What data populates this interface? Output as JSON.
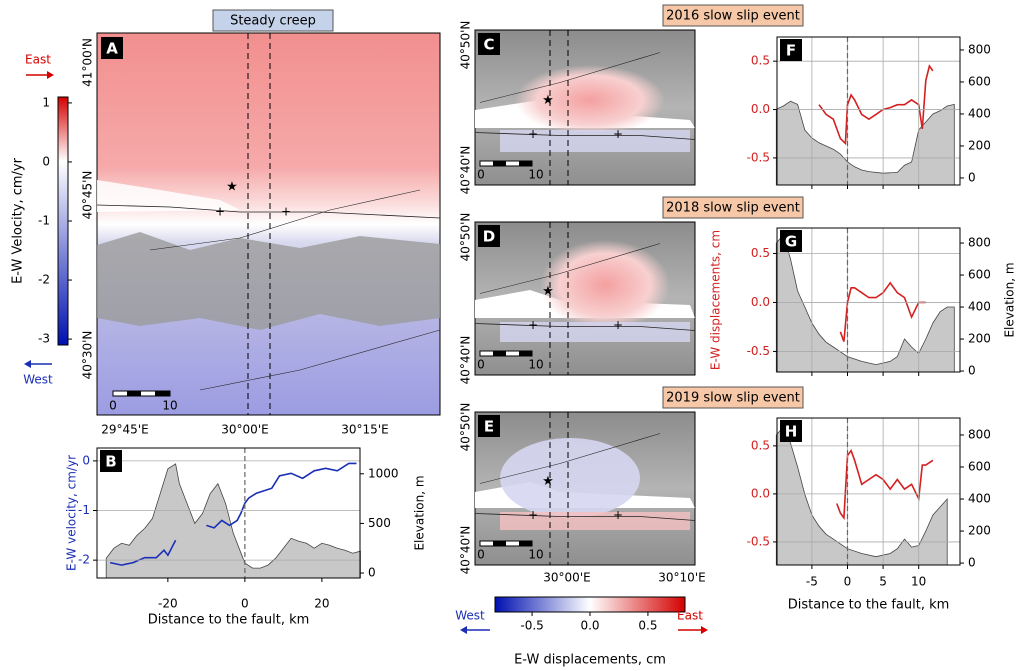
{
  "chart_data": [
    {
      "type": "line",
      "label": "B",
      "xlabel": "Distance to the fault, km",
      "ylabel": "E-W velocity, cm/yr",
      "y2label": "Elevation, m",
      "axis_color": "#1a2fb5",
      "xlim": [
        -38.4,
        29.9
      ],
      "xticks": [
        -20,
        0,
        20
      ],
      "ylim": [
        -2.36,
        0.26
      ],
      "yticks": [
        -2,
        -1,
        0
      ],
      "y2lim": [
        -50,
        1260
      ],
      "y2ticks": [
        0,
        500,
        1000
      ],
      "grid": true,
      "vline": 0,
      "series": [
        {
          "axis": "y2",
          "style": "area",
          "color": "#c8c8c8",
          "x": [
            -36,
            -34,
            -32,
            -30,
            -28,
            -26,
            -24,
            -22,
            -20,
            -18,
            -17,
            -15,
            -13,
            -11,
            -9,
            -7,
            -5,
            -3,
            -1,
            0,
            2,
            4,
            6,
            8,
            10,
            12,
            14,
            16,
            18,
            20,
            22,
            24,
            26,
            28,
            30
          ],
          "values": [
            150,
            250,
            300,
            280,
            380,
            450,
            550,
            800,
            1050,
            1100,
            900,
            700,
            500,
            600,
            800,
            900,
            700,
            400,
            200,
            100,
            50,
            50,
            80,
            150,
            250,
            350,
            320,
            300,
            250,
            300,
            280,
            250,
            230,
            200,
            220
          ]
        },
        {
          "axis": "y",
          "style": "line",
          "color": "#1a2fb5",
          "x": [
            -35,
            -32,
            -29,
            -26,
            -23,
            -21,
            -20,
            -18,
            -14,
            -10,
            -8,
            -6,
            -4,
            -2,
            -1,
            0,
            1,
            3,
            5,
            7,
            9,
            12,
            15,
            18,
            21,
            24,
            27,
            29
          ],
          "values": [
            -2.05,
            -2.1,
            -2.05,
            -1.95,
            -1.95,
            -1.8,
            -1.9,
            -1.6,
            null,
            -1.3,
            -1.35,
            -1.2,
            -1.3,
            -1.2,
            -1.05,
            -0.85,
            -0.75,
            -0.65,
            -0.6,
            -0.55,
            -0.3,
            -0.25,
            -0.35,
            -0.2,
            -0.15,
            -0.2,
            -0.05,
            -0.05
          ]
        }
      ]
    },
    {
      "type": "line",
      "label": "F",
      "axis_color": "#d42020",
      "xtick_labels": false,
      "xlim": [
        -9.9,
        15.8
      ],
      "xticks": [
        -5,
        0,
        5,
        10
      ],
      "ylim": [
        -0.78,
        0.75
      ],
      "yticks": [
        -0.5,
        {
          "value": 0,
          "label": "0.0"
        },
        0.5
      ],
      "y2lim": [
        -44,
        881
      ],
      "y2ticks": [
        0,
        200,
        400,
        600,
        800
      ],
      "grid": true,
      "vline": 0,
      "series": [
        {
          "axis": "y2",
          "style": "area",
          "color": "#c8c8c8",
          "x": [
            -10,
            -9,
            -8,
            -7,
            -6,
            -5,
            -4,
            -3,
            -2,
            -1,
            0,
            1,
            2,
            3,
            5,
            7,
            8,
            9,
            10,
            11,
            12,
            13,
            14,
            15
          ],
          "values": [
            430,
            450,
            480,
            460,
            300,
            250,
            220,
            200,
            180,
            150,
            100,
            70,
            50,
            40,
            30,
            35,
            80,
            100,
            300,
            350,
            400,
            420,
            450,
            460
          ]
        },
        {
          "axis": "y",
          "style": "line",
          "color": "#d42020",
          "x": [
            -4,
            -3,
            -2,
            -1,
            -0.3,
            0,
            0.5,
            1,
            2,
            3,
            4,
            5,
            6,
            7,
            8,
            9,
            10,
            10.5,
            11,
            11.5,
            12
          ],
          "values": [
            0.05,
            -0.05,
            -0.1,
            -0.3,
            -0.35,
            0.05,
            0.15,
            0.1,
            -0.05,
            -0.1,
            -0.05,
            0,
            0.02,
            0.05,
            0.05,
            0.1,
            0.05,
            -0.2,
            0.3,
            0.45,
            0.4
          ]
        }
      ]
    },
    {
      "type": "line",
      "label": "G",
      "axis_color": "#d42020",
      "xtick_labels": false,
      "xlim": [
        -9.9,
        15.8
      ],
      "xticks": [
        -5,
        0,
        5,
        10
      ],
      "ylim": [
        -0.71,
        0.76
      ],
      "yticks": [
        -0.5,
        {
          "value": 0,
          "label": "0.0"
        },
        0.5
      ],
      "y2lim": [
        -6,
        894
      ],
      "y2ticks": [
        0,
        200,
        400,
        600,
        800
      ],
      "grid": true,
      "vline": 0,
      "series": [
        {
          "axis": "y2",
          "style": "area",
          "color": "#c8c8c8",
          "x": [
            -10,
            -9,
            -8,
            -7,
            -6,
            -5,
            -4,
            -3,
            -2,
            -1,
            0,
            2,
            4,
            6,
            7,
            8,
            9,
            10,
            11,
            12,
            13,
            14,
            15
          ],
          "values": [
            800,
            850,
            700,
            500,
            400,
            300,
            230,
            180,
            150,
            120,
            90,
            60,
            40,
            60,
            90,
            200,
            150,
            110,
            200,
            300,
            370,
            400,
            400
          ]
        },
        {
          "axis": "y",
          "style": "line",
          "color": "#d42020",
          "x": [
            -1,
            -0.5,
            0,
            0.5,
            1,
            2,
            3,
            4,
            5,
            6,
            7,
            8,
            9,
            10,
            11
          ],
          "values": [
            -0.3,
            -0.4,
            0,
            0.15,
            0.15,
            0.1,
            0.05,
            0.05,
            0.1,
            0.2,
            0.1,
            0.05,
            -0.15,
            0,
            0
          ]
        }
      ]
    },
    {
      "type": "line",
      "label": "H",
      "xlabel": "Distance to the fault, km",
      "axis_color": "#d42020",
      "xlim": [
        -9.9,
        15.8
      ],
      "xticks": [
        -5,
        0,
        5,
        10
      ],
      "ylim": [
        -0.74,
        0.79
      ],
      "yticks": [
        -0.5,
        {
          "value": 0,
          "label": "0.0"
        },
        0.5
      ],
      "y2lim": [
        -12,
        906
      ],
      "y2ticks": [
        0,
        200,
        400,
        600,
        800
      ],
      "grid": true,
      "vline": 0,
      "series": [
        {
          "axis": "y2",
          "style": "area",
          "color": "#c8c8c8",
          "x": [
            -10,
            -9,
            -8,
            -7,
            -6,
            -5,
            -4,
            -3,
            -2,
            -1,
            0,
            2,
            4,
            6,
            7,
            8,
            9,
            10,
            11,
            12,
            13,
            14
          ],
          "values": [
            800,
            850,
            750,
            600,
            430,
            300,
            230,
            180,
            150,
            120,
            90,
            60,
            40,
            60,
            90,
            150,
            100,
            110,
            200,
            300,
            350,
            400
          ]
        },
        {
          "axis": "y",
          "style": "line",
          "color": "#d42020",
          "x": [
            -1.5,
            -1,
            -0.5,
            0,
            0.5,
            1,
            2,
            3,
            4,
            5,
            6,
            7,
            8,
            9,
            10,
            10.5,
            11,
            12
          ],
          "values": [
            -0.1,
            -0.2,
            -0.25,
            0.4,
            0.45,
            0.35,
            0.1,
            0.15,
            0.2,
            0.15,
            0.05,
            0.15,
            0.05,
            0.1,
            -0.05,
            0.3,
            0.3,
            0.35
          ]
        }
      ]
    }
  ],
  "shared_labels": {
    "y_label": "E-W displacements, cm",
    "y2_label": "Elevation, m"
  },
  "maps": {
    "a": {
      "label": "A",
      "title": "Steady creep",
      "lat_labels": [
        "41°00'N",
        "40°45'N",
        "40°30'N"
      ],
      "lon_labels": [
        "29°45'E",
        "30°00'E",
        "30°15'E"
      ],
      "scale": [
        "0",
        "10"
      ]
    },
    "c": {
      "label": "C",
      "title": "2016 slow slip event",
      "lat_labels": [
        "40°50'N",
        "40°40'N"
      ],
      "scale": [
        "0",
        "10"
      ]
    },
    "d": {
      "label": "D",
      "title": "2018 slow slip event",
      "lat_labels": [
        "40°50'N",
        "40°40'N"
      ],
      "scale": [
        "0",
        "10"
      ]
    },
    "e": {
      "label": "E",
      "title": "2019 slow slip event",
      "lat_labels": [
        "40°50'N",
        "40°40'N"
      ],
      "lon_labels": [
        "30°00'E",
        "30°10'E"
      ],
      "scale": [
        "0",
        "10"
      ]
    },
    "velocity_colorbar": {
      "label": "E-W Velocity, cm/yr",
      "clim": [
        -3.1,
        1.1
      ],
      "ticks": [
        1,
        0,
        -1,
        -2,
        -3
      ],
      "east": "East",
      "west": "West"
    },
    "displacement_colorbar": {
      "label": "E-W displacements, cm",
      "clim": [
        -0.82,
        0.82
      ],
      "ticks": [
        -0.5,
        {
          "value": 0,
          "label": "0.0"
        },
        0.5
      ],
      "west": "West",
      "east": "East"
    }
  }
}
